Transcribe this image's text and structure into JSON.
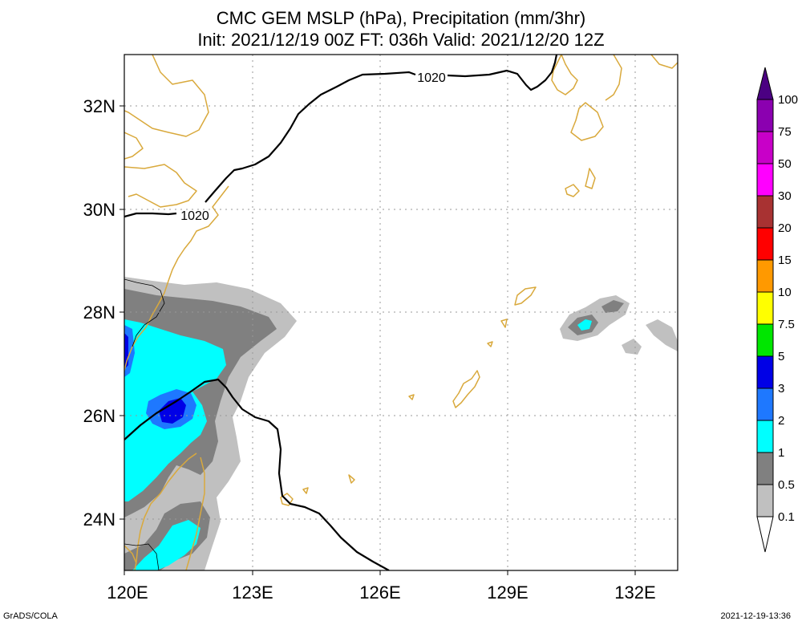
{
  "header": {
    "title_line1": "CMC GEM MSLP (hPa), Precipitation (mm/3hr)",
    "title_line2": "Init: 2021/12/19 00Z  FT: 036h  Valid: 2021/12/20 12Z"
  },
  "map": {
    "lon_labels": [
      "120E",
      "123E",
      "126E",
      "129E",
      "132E"
    ],
    "lat_labels": [
      "32N",
      "30N",
      "28N",
      "26N",
      "24N"
    ],
    "isobar_labels": [
      "1020",
      "1020"
    ],
    "colors": {
      "coastline": "#d9a93c",
      "isobar": "#000000",
      "grid": "#999999"
    }
  },
  "colorbar": {
    "labels": [
      "100",
      "75",
      "50",
      "30",
      "20",
      "15",
      "10",
      "7.5",
      "5",
      "3",
      "2",
      "1",
      "0.5",
      "0.1"
    ],
    "colors": [
      "#4b0082",
      "#8b00b0",
      "#c800c8",
      "#ff00ff",
      "#a83232",
      "#ff0000",
      "#ff9900",
      "#ffff00",
      "#00e600",
      "#0000e6",
      "#1e78ff",
      "#00ffff",
      "#808080",
      "#c0c0c0",
      "#ffffff"
    ]
  },
  "footer": {
    "left": "GrADS/COLA",
    "right": "2021-12-19-13:36"
  }
}
